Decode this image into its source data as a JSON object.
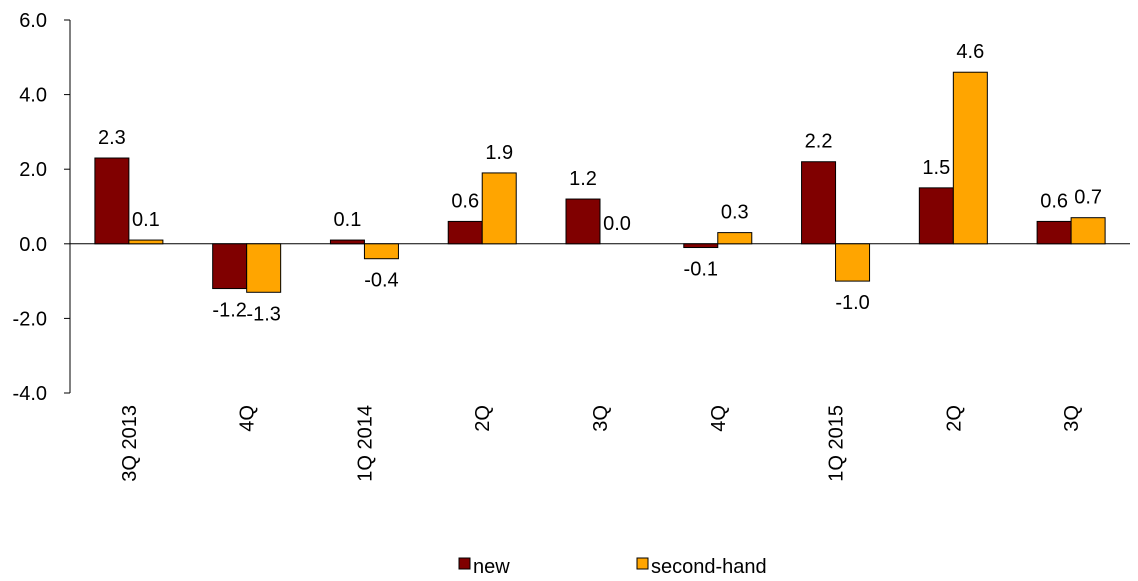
{
  "chart_data": {
    "type": "bar",
    "categories": [
      "3Q 2013",
      "4Q",
      "1Q 2014",
      "2Q",
      "3Q",
      "4Q",
      "1Q 2015",
      "2Q",
      "3Q"
    ],
    "series": [
      {
        "name": "new",
        "values": [
          2.3,
          -1.2,
          0.1,
          0.6,
          1.2,
          -0.1,
          2.2,
          1.5,
          0.6
        ],
        "color": "#800000"
      },
      {
        "name": "second-hand",
        "values": [
          0.1,
          -1.3,
          -0.4,
          1.9,
          0.0,
          0.3,
          -1.0,
          4.6,
          0.7
        ],
        "color": "#FFA500"
      }
    ],
    "data_labels": [
      [
        "2.3",
        "-1.2",
        "0.1",
        "0.6",
        "1.2",
        "-0.1",
        "2.2",
        "1.5",
        "0.6"
      ],
      [
        "0.1",
        "-1.3",
        "-0.4",
        "1.9",
        "0.0",
        "0.3",
        "-1.0",
        "4.6",
        "0.7"
      ]
    ],
    "yticks": [
      "6.0",
      "4.0",
      "2.0",
      "0.0",
      "-2.0",
      "-4.0"
    ],
    "ylim": [
      -4,
      6
    ],
    "grid": false,
    "legend_position": "bottom"
  }
}
